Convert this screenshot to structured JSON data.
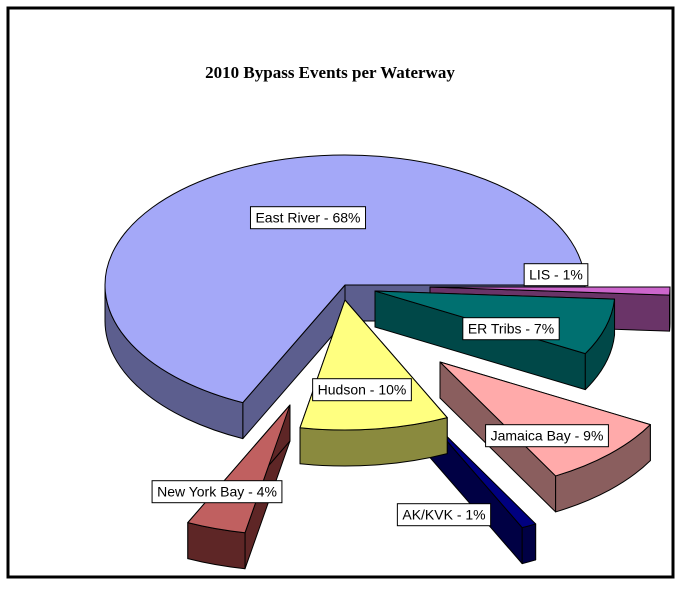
{
  "chart_data": {
    "type": "pie",
    "title": "2010 Bypass Events per Waterway",
    "values": [
      1,
      7,
      9,
      1,
      10,
      4,
      68
    ],
    "value_labels": [
      "LIS - 1%",
      "ER Tribs - 7%",
      "Jamaica Bay - 9%",
      "AK/KVK - 1%",
      "Hudson - 10%",
      "New York Bay - 4%",
      "East River  - 68%"
    ],
    "colors": [
      "#cc66cc",
      "#007070",
      "#ffaaaa",
      "#000080",
      "#ffff80",
      "#c06060",
      "#a4a8f8"
    ],
    "side_colors": [
      "#6a3468",
      "#004848",
      "#8a5e5e",
      "#000044",
      "#8a8a3e",
      "#5e2626",
      "#5c5e8e"
    ]
  }
}
